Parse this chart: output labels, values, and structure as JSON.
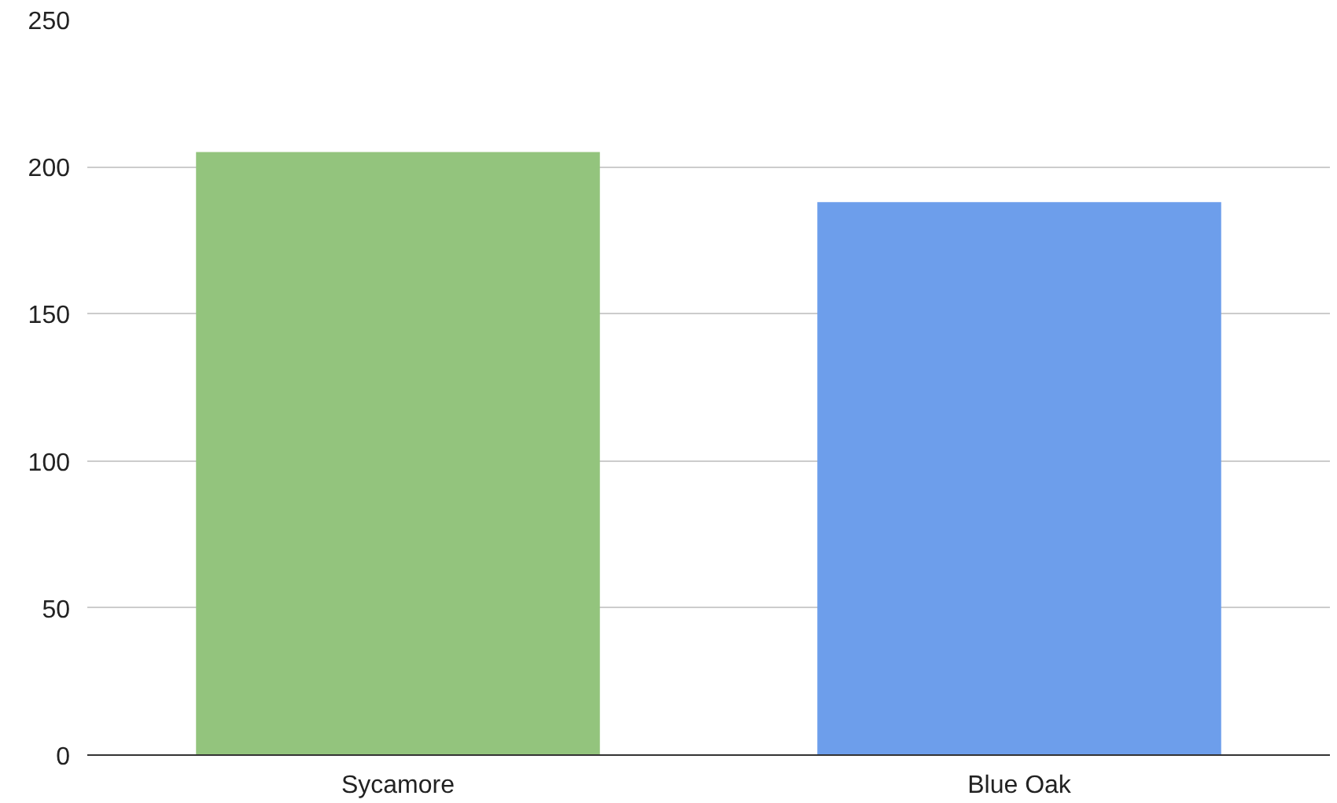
{
  "chart_data": {
    "type": "bar",
    "categories": [
      "Sycamore",
      "Blue Oak"
    ],
    "values": [
      205,
      188
    ],
    "colors": [
      "#93c47d",
      "#6d9eeb"
    ],
    "ylim": [
      0,
      250
    ],
    "yticks": [
      0,
      50,
      100,
      150,
      200,
      250
    ],
    "grid": "y"
  }
}
